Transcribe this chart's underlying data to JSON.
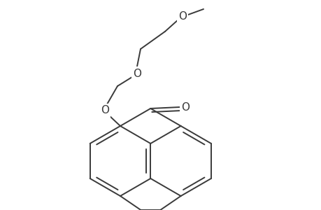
{
  "background_color": "#ffffff",
  "line_color": "#3a3a3a",
  "line_width": 1.4,
  "figsize": [
    4.6,
    3.0
  ],
  "dpi": 100,
  "xlim": [
    0,
    460
  ],
  "ylim": [
    0,
    300
  ]
}
